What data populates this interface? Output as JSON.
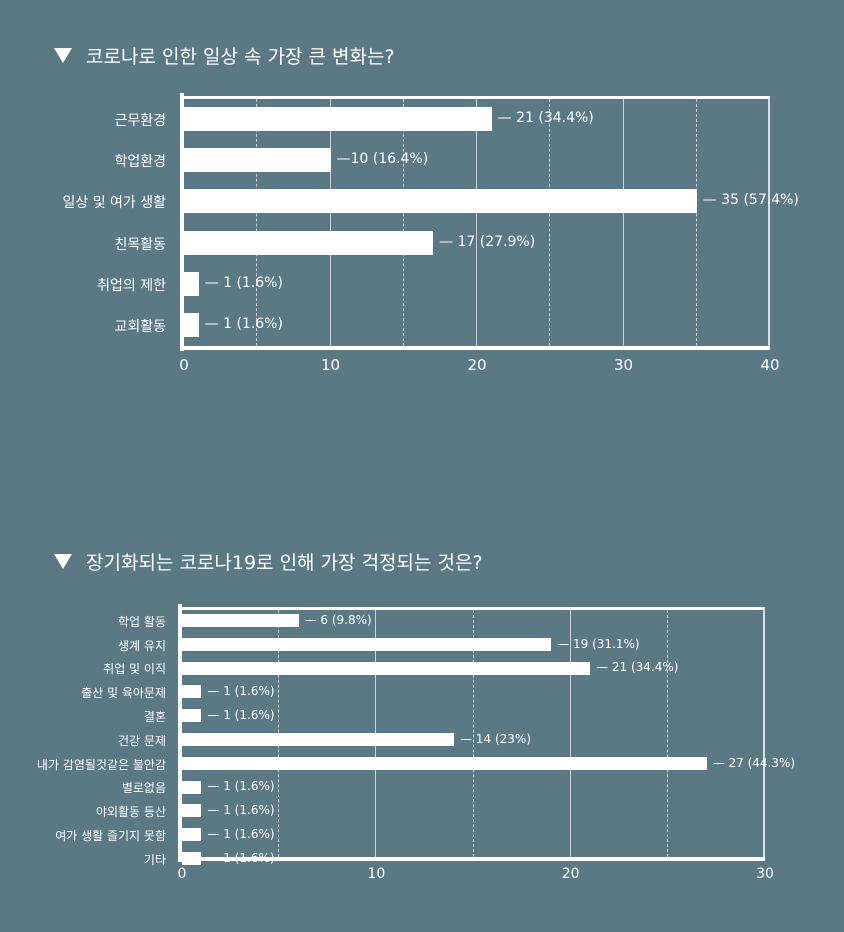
{
  "chart_data": [
    {
      "type": "bar",
      "orientation": "horizontal",
      "title": "코로나로 인한 일상 속 가장 큰 변화는?",
      "categories": [
        "근무환경",
        "학업환경",
        "일상 및 여가 생활",
        "친목활동",
        "취업의 제한",
        "교회활동"
      ],
      "values": [
        21,
        10,
        35,
        17,
        1,
        1
      ],
      "percentages": [
        "34.4%",
        "16.4%",
        "57.4%",
        "27.9%",
        "1.6%",
        "1.6%"
      ],
      "value_labels": [
        "— 21 (34.4%)",
        "—10 (16.4%)",
        "— 35 (57.4%)",
        "— 17 (27.9%)",
        "— 1 (1.6%)",
        "— 1 (1.6%)"
      ],
      "xlabel": "",
      "ylabel": "",
      "xlim": [
        0,
        40
      ],
      "xticks": [
        "0",
        "10",
        "20",
        "30",
        "40"
      ],
      "grid": true
    },
    {
      "type": "bar",
      "orientation": "horizontal",
      "title": "장기화되는 코로나19로 인해 가장 걱정되는 것은?",
      "categories": [
        "학업 활동",
        "생계 유지",
        "취업 및 이직",
        "출산 및 육아문제",
        "결혼",
        "건강 문제",
        "내가 감염될것같은 불안감",
        "별로없음",
        "야외활동 등산",
        "여가 생활 즐기지 못함",
        "기타"
      ],
      "values": [
        6,
        19,
        21,
        1,
        1,
        14,
        27,
        1,
        1,
        1,
        1
      ],
      "percentages": [
        "9.8%",
        "31.1%",
        "34.4%",
        "1.6%",
        "1.6%",
        "23%",
        "44.3%",
        "1.6%",
        "1.6%",
        "1.6%",
        "1.6%"
      ],
      "value_labels": [
        "— 6 (9.8%)",
        "— 19 (31.1%)",
        "— 21 (34.4%)",
        "— 1 (1.6%)",
        "— 1 (1.6%)",
        "— 14 (23%)",
        "— 27 (44.3%)",
        "— 1 (1.6%)",
        "— 1 (1.6%)",
        "— 1 (1.6%)",
        "— 1 (1.6%)"
      ],
      "xlabel": "",
      "ylabel": "",
      "xlim": [
        0,
        30
      ],
      "xticks": [
        "0",
        "10",
        "20",
        "30"
      ],
      "grid": true
    }
  ],
  "colors": {
    "background": "#5b7885",
    "bar": "#ffffff",
    "text": "#ffffff",
    "grid": "#c9d3d8"
  }
}
